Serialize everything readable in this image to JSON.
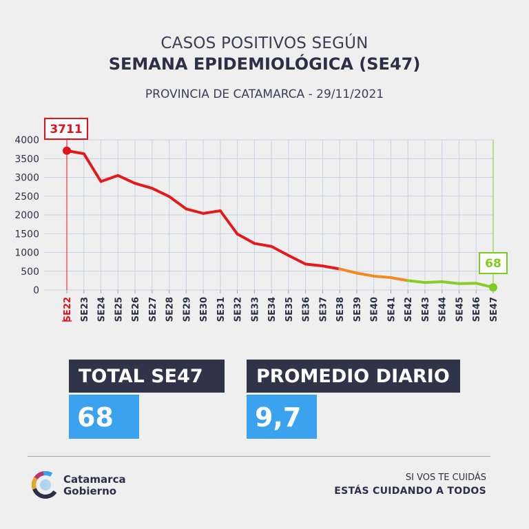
{
  "header": {
    "line1": "CASOS POSITIVOS SEGÚN",
    "line2": "SEMANA EPIDEMIOLÓGICA (SE47)",
    "subtitle": "PROVINCIA DE CATAMARCA - 29/11/2021"
  },
  "chart_data": {
    "type": "line",
    "categories": [
      "SE22",
      "SE23",
      "SE24",
      "SE25",
      "SE26",
      "SE27",
      "SE28",
      "SE29",
      "SE30",
      "SE31",
      "SE32",
      "SE33",
      "SE34",
      "SE35",
      "SE36",
      "SE37",
      "SE38",
      "SE39",
      "SE40",
      "SE41",
      "SE42",
      "SE43",
      "SE44",
      "SE45",
      "SE46",
      "SE47"
    ],
    "values": [
      3711,
      3630,
      2890,
      3050,
      2840,
      2710,
      2490,
      2160,
      2040,
      2110,
      1490,
      1240,
      1160,
      920,
      690,
      640,
      560,
      450,
      370,
      330,
      250,
      200,
      220,
      170,
      180,
      68
    ],
    "ylim": [
      0,
      4000
    ],
    "yticks": [
      0,
      500,
      1000,
      1500,
      2000,
      2500,
      3000,
      3500,
      4000
    ],
    "grid": true,
    "annotations": [
      {
        "category": "SE22",
        "label": "3711",
        "color": "#e3111b"
      },
      {
        "category": "SE47",
        "label": "68",
        "color": "#7ccb1f"
      }
    ],
    "colors": {
      "high": "#e31a1c",
      "mid": "#f08c1f",
      "low": "#8acb2a",
      "grid": "#c5d1e6",
      "axis_text": "#2b3047"
    }
  },
  "cards": {
    "total_label": "TOTAL SE47",
    "total_value": "68",
    "avg_label": "PROMEDIO DIARIO",
    "avg_value": "9,7"
  },
  "footer": {
    "logo_line1": "Catamarca",
    "logo_line2": "Gobierno",
    "slogan1": "SI VOS TE CUIDÁS",
    "slogan2": "ESTÁS CUIDANDO A TODOS"
  },
  "colors": {
    "background": "#efefef",
    "dark": "#2f3448",
    "accent_blue": "#3aa2ee"
  }
}
